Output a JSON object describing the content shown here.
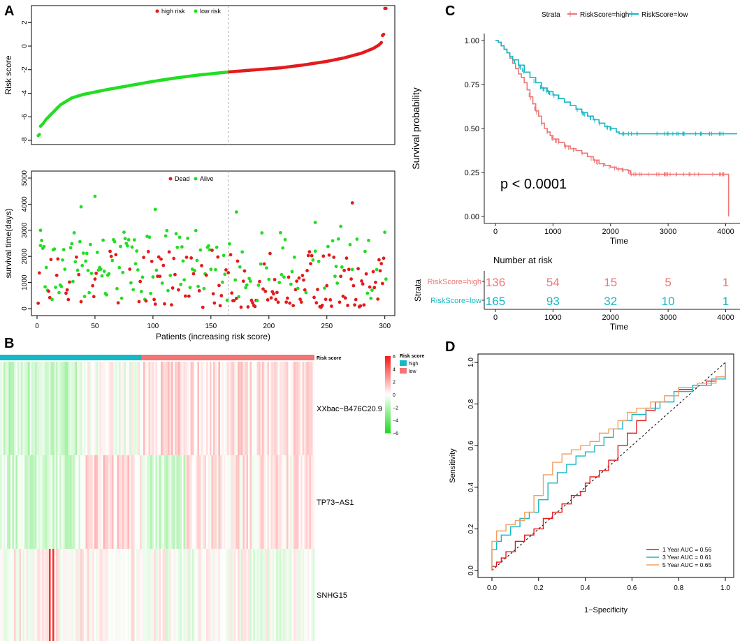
{
  "panels": {
    "A": "A",
    "B": "B",
    "C": "C",
    "D": "D"
  },
  "colors": {
    "high": "#e41a1c",
    "low": "#22dd22",
    "km_high": "#f07575",
    "km_low": "#16b8c4",
    "roc_1y": "#e41a1c",
    "roc_3y": "#16b8c4",
    "roc_5y": "#f4a064",
    "heat_pos": "#e41a1c",
    "heat_neg": "#22dd22"
  },
  "chart_data": [
    {
      "id": "A1",
      "type": "scatter",
      "title": "",
      "ylabel": "Risk score",
      "xlabel": "",
      "xlim": [
        0,
        305
      ],
      "ylim": [
        -8,
        3.2
      ],
      "xticks": [
        0,
        50,
        100,
        150,
        200,
        250,
        300
      ],
      "yticks": [
        -8,
        -6,
        -4,
        -2,
        0,
        2
      ],
      "legend": [
        "high risk",
        "low risk"
      ],
      "cutoff_index": 165,
      "n_patients": 301,
      "curve_anchors": [
        [
          1,
          -7.6
        ],
        [
          2,
          -7.5
        ],
        [
          3,
          -6.8
        ],
        [
          5,
          -6.6
        ],
        [
          8,
          -6.2
        ],
        [
          12,
          -5.8
        ],
        [
          20,
          -5.0
        ],
        [
          30,
          -4.4
        ],
        [
          40,
          -4.1
        ],
        [
          60,
          -3.7
        ],
        [
          80,
          -3.35
        ],
        [
          100,
          -3.0
        ],
        [
          120,
          -2.7
        ],
        [
          140,
          -2.45
        ],
        [
          165,
          -2.2
        ],
        [
          190,
          -2.0
        ],
        [
          210,
          -1.85
        ],
        [
          230,
          -1.6
        ],
        [
          250,
          -1.3
        ],
        [
          265,
          -1.0
        ],
        [
          280,
          -0.6
        ],
        [
          290,
          -0.2
        ],
        [
          295,
          0.1
        ],
        [
          297,
          0.3
        ],
        [
          298,
          0.9
        ],
        [
          299,
          1.0
        ],
        [
          300,
          3.2
        ]
      ]
    },
    {
      "id": "A2",
      "type": "scatter",
      "ylabel": "survival time(days)",
      "xlabel": "Patients (increasing risk score)",
      "xlim": [
        0,
        305
      ],
      "ylim": [
        0,
        5000
      ],
      "xticks": [
        0,
        50,
        100,
        150,
        200,
        250,
        300
      ],
      "yticks": [
        0,
        1000,
        2000,
        3000,
        4000,
        5000
      ],
      "legend": [
        "Dead",
        "Alive"
      ],
      "cutoff_index": 165,
      "highlight_points": [
        {
          "x": 3,
          "y": 3000,
          "status": "Alive"
        },
        {
          "x": 38,
          "y": 3900,
          "status": "Alive"
        },
        {
          "x": 50,
          "y": 4300,
          "status": "Alive"
        },
        {
          "x": 102,
          "y": 3800,
          "status": "Alive"
        },
        {
          "x": 172,
          "y": 3700,
          "status": "Alive"
        },
        {
          "x": 272,
          "y": 4050,
          "status": "Dead"
        },
        {
          "x": 240,
          "y": 3300,
          "status": "Alive"
        },
        {
          "x": 262,
          "y": 3150,
          "status": "Alive"
        }
      ]
    },
    {
      "id": "B",
      "type": "heatmap",
      "genes": [
        "XXbac−B476C20.9",
        "TP73−AS1",
        "SNHG15"
      ],
      "annotation_label": "Risk score",
      "legend_title": "Risk score",
      "legend_groups": [
        "high",
        "low"
      ],
      "color_scale_ticks": [
        6,
        4,
        2,
        0,
        -2,
        -4,
        -6
      ],
      "color_scale_labels": [
        "6",
        "4",
        "2",
        "0",
        "−2",
        "−4",
        "−6"
      ],
      "n_samples": 301,
      "split_fraction": 0.45
    },
    {
      "id": "C",
      "type": "line",
      "title": "",
      "strata_label": "Strata",
      "series": [
        {
          "name": "RiskScore=high",
          "key": "km_high",
          "points": [
            [
              0,
              1.0
            ],
            [
              50,
              0.99
            ],
            [
              100,
              0.97
            ],
            [
              150,
              0.95
            ],
            [
              200,
              0.93
            ],
            [
              250,
              0.9
            ],
            [
              300,
              0.87
            ],
            [
              350,
              0.84
            ],
            [
              400,
              0.81
            ],
            [
              450,
              0.79
            ],
            [
              500,
              0.76
            ],
            [
              550,
              0.72
            ],
            [
              600,
              0.68
            ],
            [
              650,
              0.64
            ],
            [
              700,
              0.6
            ],
            [
              750,
              0.57
            ],
            [
              800,
              0.53
            ],
            [
              850,
              0.5
            ],
            [
              900,
              0.48
            ],
            [
              950,
              0.46
            ],
            [
              1000,
              0.44
            ],
            [
              1100,
              0.42
            ],
            [
              1200,
              0.4
            ],
            [
              1300,
              0.385
            ],
            [
              1400,
              0.375
            ],
            [
              1500,
              0.36
            ],
            [
              1600,
              0.34
            ],
            [
              1700,
              0.32
            ],
            [
              1800,
              0.3
            ],
            [
              1900,
              0.29
            ],
            [
              2000,
              0.28
            ],
            [
              2100,
              0.27
            ],
            [
              2200,
              0.265
            ],
            [
              2300,
              0.26
            ],
            [
              2350,
              0.24
            ],
            [
              3000,
              0.24
            ],
            [
              4000,
              0.24
            ],
            [
              4050,
              0.24
            ],
            [
              4050,
              0.0
            ]
          ]
        },
        {
          "name": "RiskScore=low",
          "key": "km_low",
          "points": [
            [
              0,
              1.0
            ],
            [
              50,
              0.99
            ],
            [
              100,
              0.97
            ],
            [
              150,
              0.95
            ],
            [
              200,
              0.93
            ],
            [
              250,
              0.91
            ],
            [
              300,
              0.89
            ],
            [
              400,
              0.86
            ],
            [
              500,
              0.82
            ],
            [
              600,
              0.79
            ],
            [
              700,
              0.76
            ],
            [
              800,
              0.73
            ],
            [
              900,
              0.71
            ],
            [
              1000,
              0.69
            ],
            [
              1100,
              0.67
            ],
            [
              1200,
              0.65
            ],
            [
              1300,
              0.63
            ],
            [
              1400,
              0.61
            ],
            [
              1500,
              0.59
            ],
            [
              1600,
              0.57
            ],
            [
              1700,
              0.55
            ],
            [
              1800,
              0.53
            ],
            [
              1900,
              0.51
            ],
            [
              2000,
              0.5
            ],
            [
              2100,
              0.48
            ],
            [
              2150,
              0.47
            ],
            [
              3000,
              0.47
            ],
            [
              4000,
              0.47
            ],
            [
              4200,
              0.47
            ]
          ]
        }
      ],
      "xlabel": "Time",
      "ylabel": "Survival probability",
      "xlim": [
        0,
        4200
      ],
      "ylim": [
        0,
        1
      ],
      "xticks": [
        0,
        1000,
        2000,
        3000,
        4000
      ],
      "yticks": [
        "0.00",
        "0.25",
        "0.50",
        "0.75",
        "1.00"
      ],
      "pvalue": "p < 0.0001",
      "risk_table": {
        "title": "Number at risk",
        "ylabel": "Strata",
        "times": [
          0,
          1000,
          2000,
          3000,
          4000
        ],
        "rows": [
          {
            "name": "RiskScore=high",
            "key": "km_high",
            "counts": [
              136,
              54,
              15,
              5,
              1
            ]
          },
          {
            "name": "RiskScore=low",
            "key": "km_low",
            "counts": [
              165,
              93,
              32,
              10,
              1
            ]
          }
        ],
        "xlabel": "Time"
      }
    },
    {
      "id": "D",
      "type": "line",
      "xlabel": "1−Specificity",
      "ylabel": "Sensitivity",
      "xlim": [
        0,
        1
      ],
      "ylim": [
        0,
        1
      ],
      "xticks": [
        "0.0",
        "0.2",
        "0.4",
        "0.6",
        "0.8",
        "1.0"
      ],
      "yticks": [
        "0.0",
        "0.2",
        "0.4",
        "0.6",
        "0.8",
        "1.0"
      ],
      "series": [
        {
          "name": "1 Year AUC = 0.56",
          "key": "roc_1y",
          "points": [
            [
              0,
              0
            ],
            [
              0,
              0.02
            ],
            [
              0.02,
              0.04
            ],
            [
              0.04,
              0.06
            ],
            [
              0.06,
              0.09
            ],
            [
              0.1,
              0.14
            ],
            [
              0.14,
              0.17
            ],
            [
              0.18,
              0.2
            ],
            [
              0.22,
              0.21
            ],
            [
              0.22,
              0.25
            ],
            [
              0.26,
              0.28
            ],
            [
              0.3,
              0.32
            ],
            [
              0.34,
              0.36
            ],
            [
              0.38,
              0.38
            ],
            [
              0.4,
              0.42
            ],
            [
              0.42,
              0.45
            ],
            [
              0.46,
              0.48
            ],
            [
              0.5,
              0.53
            ],
            [
              0.54,
              0.6
            ],
            [
              0.58,
              0.66
            ],
            [
              0.62,
              0.72
            ],
            [
              0.66,
              0.77
            ],
            [
              0.7,
              0.81
            ],
            [
              0.74,
              0.84
            ],
            [
              0.8,
              0.87
            ],
            [
              0.86,
              0.89
            ],
            [
              0.92,
              0.91
            ],
            [
              0.96,
              0.93
            ],
            [
              1,
              1
            ]
          ]
        },
        {
          "name": "3 Year AUC = 0.61",
          "key": "roc_3y",
          "points": [
            [
              0,
              0
            ],
            [
              0,
              0.1
            ],
            [
              0.02,
              0.14
            ],
            [
              0.04,
              0.17
            ],
            [
              0.08,
              0.21
            ],
            [
              0.12,
              0.25
            ],
            [
              0.16,
              0.28
            ],
            [
              0.2,
              0.34
            ],
            [
              0.24,
              0.42
            ],
            [
              0.28,
              0.47
            ],
            [
              0.32,
              0.51
            ],
            [
              0.36,
              0.55
            ],
            [
              0.4,
              0.57
            ],
            [
              0.44,
              0.6
            ],
            [
              0.48,
              0.64
            ],
            [
              0.52,
              0.68
            ],
            [
              0.56,
              0.72
            ],
            [
              0.6,
              0.75
            ],
            [
              0.66,
              0.78
            ],
            [
              0.72,
              0.81
            ],
            [
              0.78,
              0.86
            ],
            [
              0.86,
              0.89
            ],
            [
              0.94,
              0.92
            ],
            [
              1,
              1
            ]
          ]
        },
        {
          "name": "5 Year AUC = 0.65",
          "key": "roc_5y",
          "points": [
            [
              0,
              0
            ],
            [
              0,
              0.14
            ],
            [
              0.02,
              0.19
            ],
            [
              0.06,
              0.22
            ],
            [
              0.1,
              0.24
            ],
            [
              0.14,
              0.28
            ],
            [
              0.18,
              0.36
            ],
            [
              0.22,
              0.46
            ],
            [
              0.26,
              0.52
            ],
            [
              0.3,
              0.56
            ],
            [
              0.34,
              0.58
            ],
            [
              0.38,
              0.6
            ],
            [
              0.42,
              0.62
            ],
            [
              0.46,
              0.66
            ],
            [
              0.5,
              0.68
            ],
            [
              0.54,
              0.72
            ],
            [
              0.58,
              0.76
            ],
            [
              0.62,
              0.78
            ],
            [
              0.68,
              0.81
            ],
            [
              0.74,
              0.84
            ],
            [
              0.8,
              0.88
            ],
            [
              0.88,
              0.9
            ],
            [
              0.96,
              0.93
            ],
            [
              1,
              1
            ]
          ]
        }
      ],
      "legend_position": "bottom-right"
    }
  ]
}
